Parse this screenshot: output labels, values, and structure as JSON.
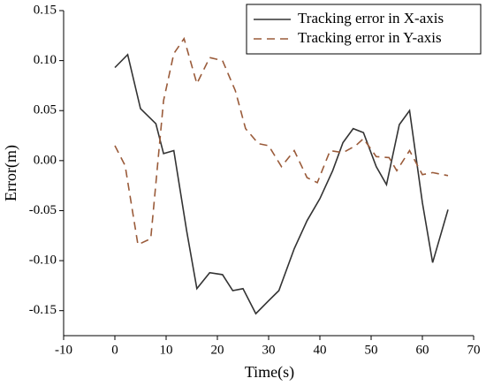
{
  "chart_data": {
    "type": "line",
    "xlabel": "Time(s)",
    "ylabel": "Error(m)",
    "xlim": [
      -10,
      70
    ],
    "xticks": [
      -10,
      0,
      10,
      20,
      30,
      40,
      50,
      60,
      70
    ],
    "ylim": [
      -0.175,
      0.15
    ],
    "yticks": [
      {
        "value": -0.15,
        "label": "-0.15"
      },
      {
        "value": -0.1,
        "label": "-0.10"
      },
      {
        "value": -0.05,
        "label": "-0.05"
      },
      {
        "value": 0,
        "label": "0.00"
      },
      {
        "value": 0.05,
        "label": "0.05"
      },
      {
        "value": 0.1,
        "label": "0.10"
      },
      {
        "value": 0.15,
        "label": "0.15"
      }
    ],
    "grid": false,
    "legend": "upper right",
    "series": [
      {
        "name": "Tracking error in X-axis",
        "color": "#333333",
        "style": "solid",
        "x": [
          0,
          2.5,
          5,
          8,
          9.5,
          11.5,
          14,
          16,
          18.5,
          21,
          23,
          25,
          27.5,
          30,
          32,
          35,
          37.5,
          40,
          42.5,
          44.5,
          46.5,
          48.5,
          51,
          53,
          55.5,
          57.5,
          60,
          62,
          65
        ],
        "values": [
          0.093,
          0.106,
          0.052,
          0.037,
          0.007,
          0.01,
          -0.07,
          -0.128,
          -0.112,
          -0.114,
          -0.13,
          -0.128,
          -0.153,
          -0.14,
          -0.13,
          -0.088,
          -0.06,
          -0.038,
          -0.01,
          0.018,
          0.032,
          0.028,
          -0.006,
          -0.024,
          0.036,
          0.05,
          -0.042,
          -0.102,
          -0.049
        ]
      },
      {
        "name": "Tracking error in Y-axis",
        "color": "#9a5b3a",
        "style": "dashed",
        "x": [
          0,
          2,
          4.5,
          7,
          9.5,
          11.5,
          13.5,
          16,
          18.5,
          21,
          23.5,
          25.5,
          28,
          30,
          32.5,
          35,
          37.5,
          39.5,
          42,
          44.5,
          47,
          48.5,
          51,
          53.5,
          55,
          57.5,
          60,
          62,
          65
        ],
        "values": [
          0.015,
          -0.005,
          -0.084,
          -0.078,
          0.06,
          0.107,
          0.122,
          0.077,
          0.103,
          0.1,
          0.07,
          0.032,
          0.017,
          0.015,
          -0.006,
          0.01,
          -0.017,
          -0.022,
          0.01,
          0.008,
          0.015,
          0.022,
          0.004,
          0.003,
          -0.01,
          0.01,
          -0.014,
          -0.012,
          -0.015
        ]
      }
    ]
  }
}
